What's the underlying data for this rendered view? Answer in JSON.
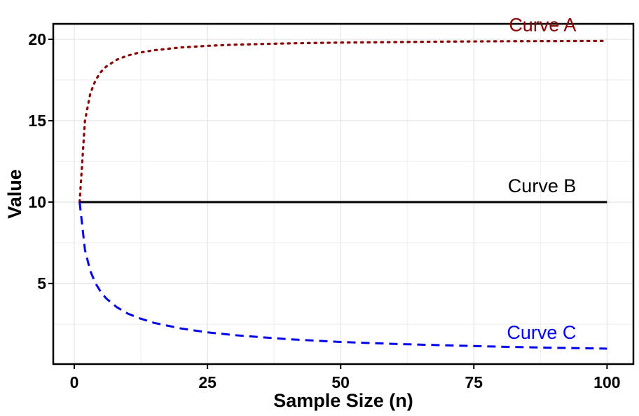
{
  "chart_data": {
    "type": "line",
    "title": "",
    "xlabel": "Sample Size (n)",
    "ylabel": "Value",
    "xlim": [
      -3.95,
      104.95
    ],
    "ylim": [
      0.05,
      20.95
    ],
    "x_ticks": [
      0,
      25,
      50,
      75,
      100
    ],
    "y_ticks": [
      5,
      10,
      15,
      20
    ],
    "grid": true,
    "legend": "direct labels at right",
    "series": [
      {
        "name": "Curve A",
        "color": "#8b0000",
        "style": "dotted",
        "x": [
          1,
          2,
          3,
          4,
          5,
          6,
          8,
          10,
          12,
          15,
          20,
          25,
          30,
          40,
          50,
          60,
          70,
          80,
          90,
          100
        ],
        "y": [
          10,
          15,
          16.67,
          17.5,
          18,
          18.33,
          18.75,
          19,
          19.17,
          19.33,
          19.5,
          19.6,
          19.67,
          19.75,
          19.8,
          19.83,
          19.86,
          19.88,
          19.89,
          19.9
        ]
      },
      {
        "name": "Curve B",
        "color": "#000000",
        "style": "solid",
        "x": [
          1,
          100
        ],
        "y": [
          10,
          10
        ]
      },
      {
        "name": "Curve C",
        "color": "#0000ee",
        "style": "dashed",
        "x": [
          1,
          2,
          3,
          4,
          5,
          6,
          8,
          10,
          12,
          15,
          20,
          25,
          30,
          40,
          50,
          60,
          70,
          80,
          90,
          100
        ],
        "y": [
          10,
          7.07,
          5.77,
          5,
          4.47,
          4.08,
          3.54,
          3.16,
          2.89,
          2.58,
          2.24,
          2,
          1.83,
          1.58,
          1.41,
          1.29,
          1.2,
          1.12,
          1.05,
          1
        ]
      }
    ]
  }
}
